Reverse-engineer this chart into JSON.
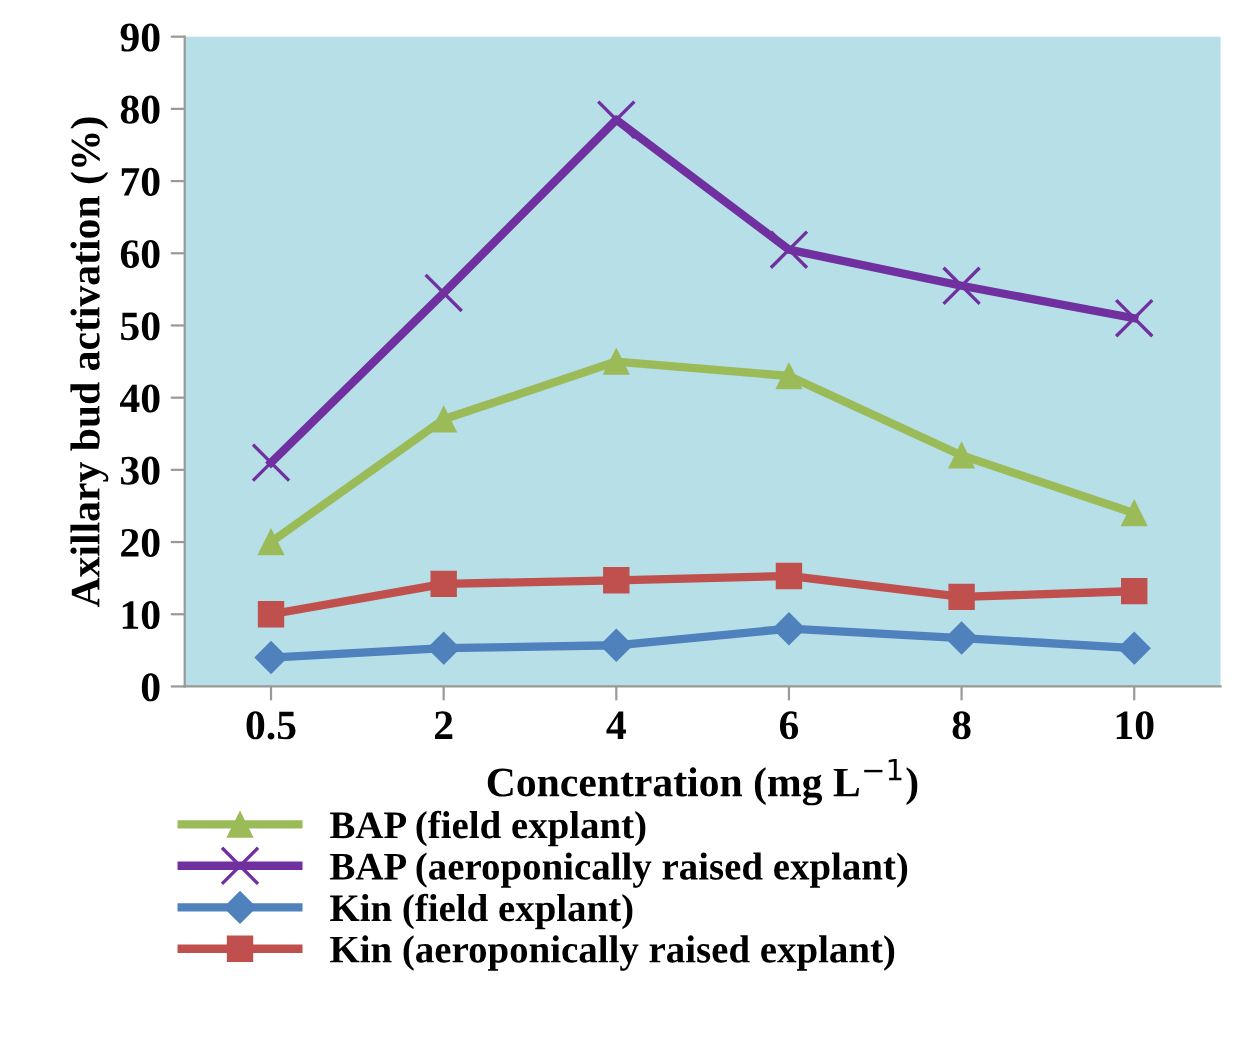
{
  "chart_data": {
    "type": "line",
    "xlabel": "Concentration (mg L$^{−1}$)",
    "ylabel": "Axillary bud activation (%)",
    "categories": [
      "0.5",
      "2",
      "4",
      "6",
      "8",
      "10"
    ],
    "series": [
      {
        "name": "BAP (field explant)",
        "color": "#9bbb59",
        "marker": "triangle",
        "values": [
          20,
          37,
          45,
          43,
          32,
          24
        ]
      },
      {
        "name": "BAP (aeroponically raised explant)",
        "color": "#7030a0",
        "marker": "cross",
        "values": [
          31,
          54.5,
          78.5,
          60.5,
          55.5,
          51
        ]
      },
      {
        "name": "Kin (field explant)",
        "color": "#4f81bd",
        "marker": "diamond",
        "values": [
          4,
          5.3,
          5.7,
          8,
          6.7,
          5.3
        ]
      },
      {
        "name": "Kin (aeroponically raised explant)",
        "color": "#c0504d",
        "marker": "square",
        "values": [
          10,
          14.2,
          14.7,
          15.3,
          12.4,
          13.2
        ]
      }
    ],
    "ylim": [
      0,
      90
    ],
    "yticks": [
      0,
      10,
      20,
      30,
      40,
      50,
      60,
      70,
      80,
      90
    ],
    "grid": false,
    "legend": "bottom"
  }
}
